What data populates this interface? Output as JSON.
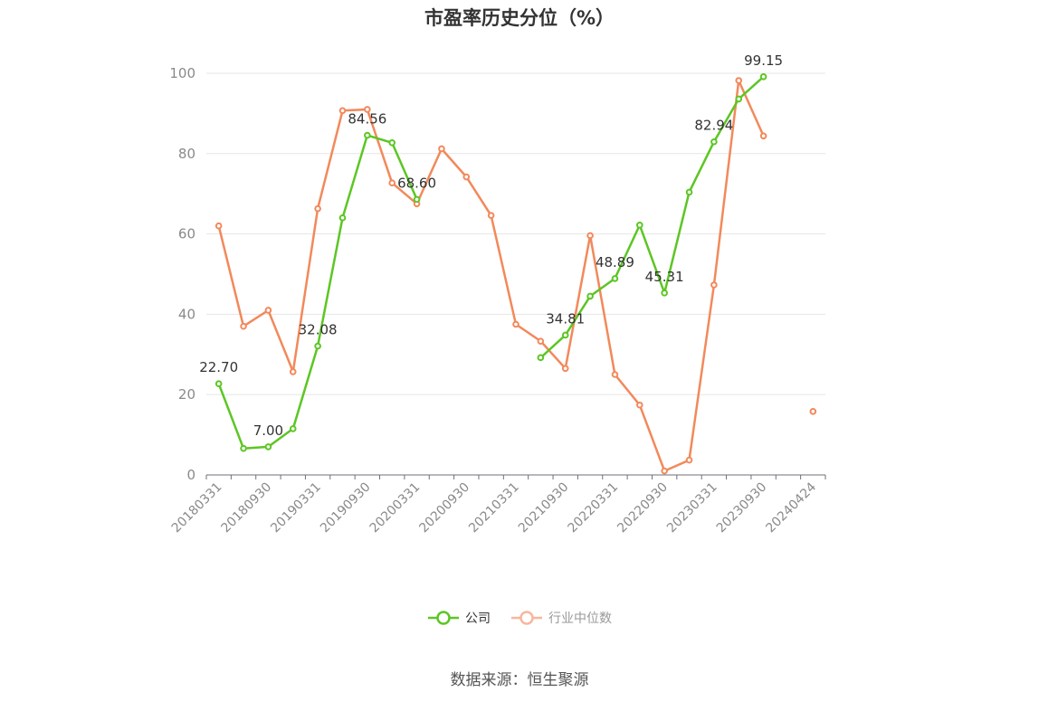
{
  "title": "市盈率历史分位（%）",
  "source": "数据来源：恒生聚源",
  "colors": {
    "company": "#5cc624",
    "industry": "#f2895b",
    "axis": "#6e7079",
    "grid": "#e6e6e6",
    "label": "#333333",
    "tick": "#8a8a8a"
  },
  "chart_data": {
    "type": "line",
    "title": "市盈率历史分位（%）",
    "ylim": [
      0,
      100
    ],
    "yticks": [
      0,
      20,
      40,
      60,
      80,
      100
    ],
    "grid": true,
    "legend_position": "bottom-center",
    "x": [
      "20180331",
      "20180630",
      "20180930",
      "20181231",
      "20190331",
      "20190630",
      "20190930",
      "20191231",
      "20200331",
      "20200630",
      "20200930",
      "20201231",
      "20210331",
      "20210630",
      "20210930",
      "20211231",
      "20220331",
      "20220630",
      "20220930",
      "20221231",
      "20230331",
      "20230630",
      "20230930",
      "20231231",
      "20240424"
    ],
    "xtick_labels": [
      "20180331",
      "20180930",
      "20190331",
      "20190930",
      "20200331",
      "20200930",
      "20210331",
      "20210930",
      "20220331",
      "20220930",
      "20230331",
      "20230930",
      "20240424"
    ],
    "series": [
      {
        "name": "公司",
        "color": "#5cc624",
        "values": [
          22.7,
          6.6,
          7.0,
          11.5,
          32.08,
          64.0,
          84.56,
          82.7,
          68.6,
          null,
          null,
          null,
          null,
          29.2,
          34.81,
          44.5,
          48.89,
          62.2,
          45.31,
          70.4,
          82.94,
          93.6,
          99.15,
          null,
          null
        ],
        "labels": [
          "22.70",
          null,
          "7.00",
          null,
          "32.08",
          null,
          "84.56",
          null,
          "68.60",
          null,
          null,
          null,
          null,
          null,
          "34.81",
          null,
          "48.89",
          null,
          "45.31",
          null,
          "82.94",
          null,
          "99.15",
          null,
          null
        ]
      },
      {
        "name": "行业中位数",
        "color": "#f2895b",
        "values": [
          62.0,
          37.0,
          41.0,
          25.7,
          66.3,
          90.7,
          91.0,
          72.7,
          67.5,
          81.2,
          74.2,
          64.6,
          37.5,
          33.3,
          26.5,
          59.6,
          25.0,
          17.4,
          1.0,
          3.7,
          47.3,
          98.2,
          84.4,
          null,
          15.8
        ]
      }
    ]
  },
  "legend": [
    {
      "label": "公司",
      "color": "#5cc624"
    },
    {
      "label": "行业中位数",
      "color": "#f2895b"
    }
  ]
}
